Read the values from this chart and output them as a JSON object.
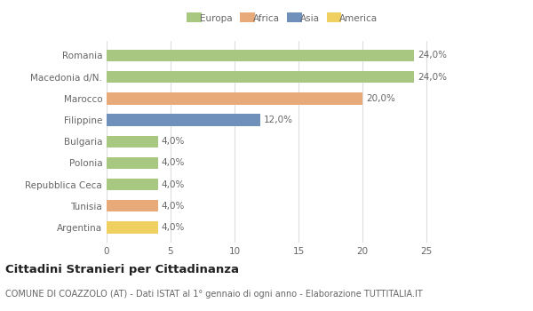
{
  "categories": [
    "Romania",
    "Macedonia d/N.",
    "Marocco",
    "Filippine",
    "Bulgaria",
    "Polonia",
    "Repubblica Ceca",
    "Tunisia",
    "Argentina"
  ],
  "values": [
    24.0,
    24.0,
    20.0,
    12.0,
    4.0,
    4.0,
    4.0,
    4.0,
    4.0
  ],
  "bar_colors": [
    "#a8c882",
    "#a8c882",
    "#e8aa78",
    "#7090bc",
    "#a8c882",
    "#a8c882",
    "#a8c882",
    "#e8aa78",
    "#f0d060"
  ],
  "labels": [
    "24,0%",
    "24,0%",
    "20,0%",
    "12,0%",
    "4,0%",
    "4,0%",
    "4,0%",
    "4,0%",
    "4,0%"
  ],
  "xlim": [
    0,
    27.5
  ],
  "legend_entries": [
    "Europa",
    "Africa",
    "Asia",
    "America"
  ],
  "legend_colors": [
    "#a8c882",
    "#e8aa78",
    "#7090bc",
    "#f0d060"
  ],
  "title": "Cittadini Stranieri per Cittadinanza",
  "subtitle": "COMUNE DI COAZZOLO (AT) - Dati ISTAT al 1° gennaio di ogni anno - Elaborazione TUTTITALIA.IT",
  "bg_color": "#ffffff",
  "bar_height": 0.55,
  "label_fontsize": 7.5,
  "title_fontsize": 9.5,
  "subtitle_fontsize": 7,
  "tick_fontsize": 7.5,
  "ytick_fontsize": 7.5,
  "xticks": [
    0,
    5,
    10,
    15,
    20,
    25
  ]
}
